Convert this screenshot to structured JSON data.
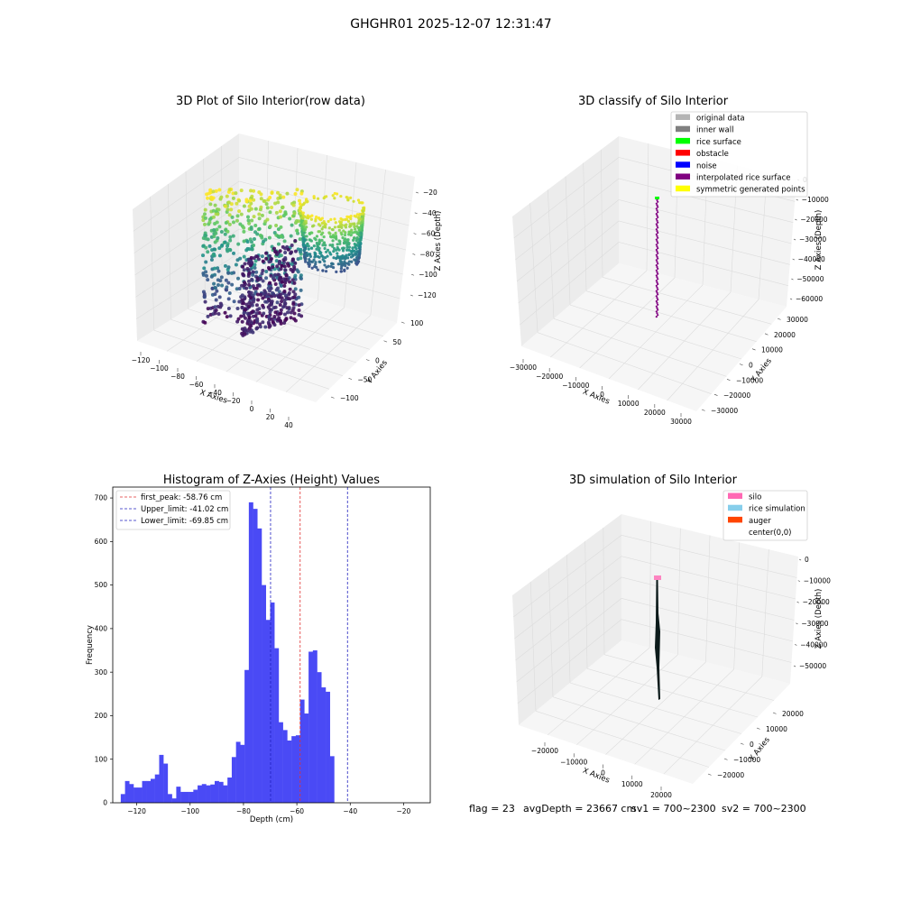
{
  "suptitle": "GHGHR01 2025-12-07 12:31:47",
  "status": {
    "flag": "flag = 23",
    "avg_depth": "avgDepth = 23667 cm",
    "sv1": "sv1 = 700~2300",
    "sv2": "sv2 = 700~2300"
  },
  "colors": {
    "hist_bar": "#4a4af5",
    "first_peak_line": "#e03030",
    "limit_lines": "#2020c0",
    "pane_left": "#ececec",
    "pane_back": "#f3f3f3",
    "pane_floor": "#f6f6f6"
  },
  "plots": {
    "raw": {
      "title": "3D Plot of Silo Interior(row data)",
      "xlabel": "X Axies",
      "ylabel": "Y Axies",
      "zlabel": "Z Axies (Depth)",
      "xticks": [
        "−120",
        "−100",
        "−80",
        "−60",
        "−40",
        "−20",
        "0",
        "20",
        "40"
      ],
      "yticks": [
        "100",
        "50",
        "0",
        "−50",
        "−100"
      ],
      "zticks": [
        "−20",
        "−40",
        "−60",
        "−80",
        "−100",
        "−120"
      ],
      "colormap": "viridis"
    },
    "classify": {
      "title": "3D classify of Silo Interior",
      "xlabel": "X Axies",
      "ylabel": "Y Axies",
      "zlabel": "Z Axies (Depth)",
      "xticks": [
        "−30000",
        "−20000",
        "−10000",
        "0",
        "10000",
        "20000",
        "30000"
      ],
      "yticks": [
        "30000",
        "20000",
        "10000",
        "0",
        "−10000",
        "−20000",
        "−30000"
      ],
      "zticks": [
        "0",
        "−10000",
        "−20000",
        "−30000",
        "−40000",
        "−50000",
        "−60000"
      ],
      "legend": [
        {
          "label": "original data",
          "color": "#b4b4b4"
        },
        {
          "label": "inner wall",
          "color": "#808080"
        },
        {
          "label": "rice surface",
          "color": "#00ff00"
        },
        {
          "label": "obstacle",
          "color": "#ff0000"
        },
        {
          "label": "noise",
          "color": "#0000ff"
        },
        {
          "label": "interpolated rice surface",
          "color": "#800080"
        },
        {
          "label": "symmetric generated points",
          "color": "#ffff00"
        }
      ]
    },
    "simulation": {
      "title": "3D simulation of Silo Interior",
      "xlabel": "X Axies",
      "ylabel": "Y Axies",
      "zlabel": "Z Axies (Depth)",
      "xticks": [
        "−20000",
        "−10000",
        "0",
        "10000",
        "20000"
      ],
      "yticks": [
        "20000",
        "10000",
        "0",
        "−10000",
        "−20000"
      ],
      "zticks": [
        "0",
        "−10000",
        "−20000",
        "−30000",
        "−40000",
        "−50000"
      ],
      "legend": [
        {
          "label": "silo",
          "color": "#ff69b4"
        },
        {
          "label": "rice simulation",
          "color": "#87ceeb"
        },
        {
          "label": "auger",
          "color": "#ff4500"
        },
        {
          "label": "center(0,0)",
          "color": "#ffffff"
        }
      ]
    }
  },
  "chart_data": {
    "type": "bar",
    "title": "Histogram of Z-Axies (Height) Values",
    "xlabel": "Depth (cm)",
    "ylabel": "Frequency",
    "xlim": [
      -129,
      -10
    ],
    "ylim": [
      0,
      725
    ],
    "xticks": [
      -120,
      -100,
      -80,
      -60,
      -40,
      -20
    ],
    "yticks": [
      0,
      100,
      200,
      300,
      400,
      500,
      600,
      700
    ],
    "bin_start": -126,
    "bin_width": 1.6,
    "values": [
      20,
      50,
      43,
      35,
      35,
      50,
      50,
      55,
      65,
      110,
      90,
      20,
      10,
      37,
      25,
      25,
      25,
      30,
      40,
      43,
      40,
      42,
      50,
      48,
      40,
      58,
      105,
      140,
      133,
      305,
      690,
      675,
      630,
      500,
      420,
      460,
      355,
      185,
      167,
      143,
      153,
      155,
      237,
      205,
      347,
      350,
      300,
      265,
      255,
      107
    ],
    "lines": [
      {
        "label": "first_peak: -58.76 cm",
        "x": -58.76,
        "style": "red"
      },
      {
        "label": "Upper_limit: -41.02 cm",
        "x": -41.02,
        "style": "blue"
      },
      {
        "label": "Lower_limit: -69.85 cm",
        "x": -69.85,
        "style": "blue"
      }
    ],
    "legend_position": "upper left"
  }
}
